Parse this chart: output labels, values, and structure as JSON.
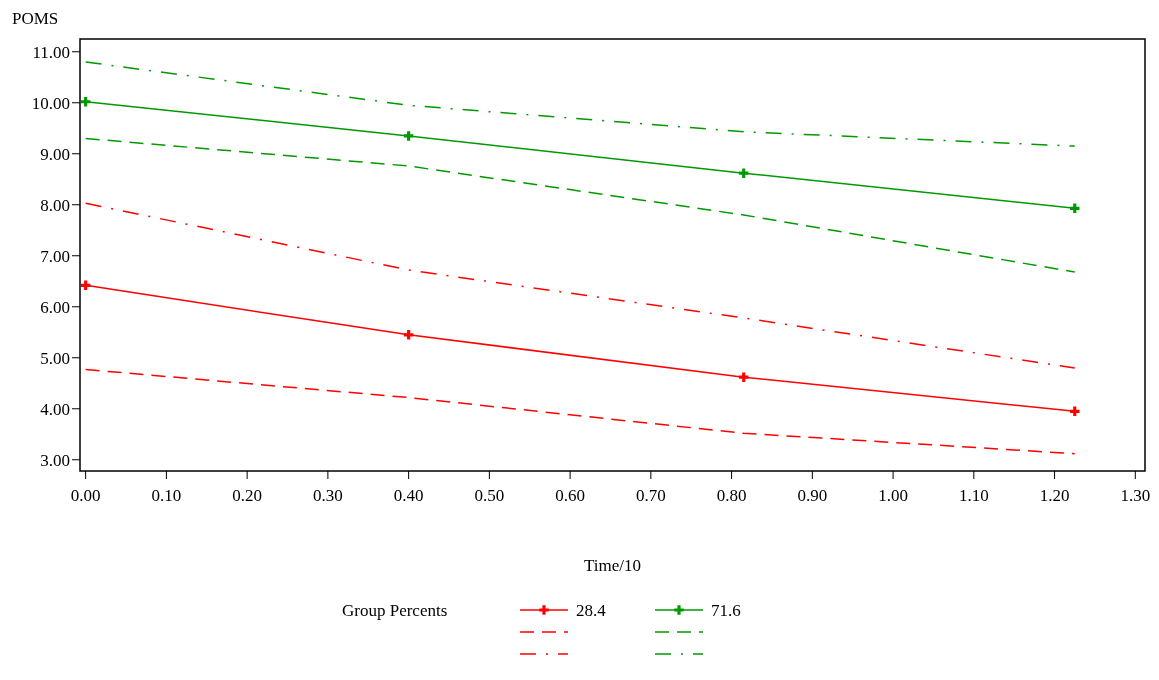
{
  "chart_data": {
    "type": "line",
    "xlabel": "Time/10",
    "ylabel": "POMS",
    "legend_title": "Group Percents",
    "legend": "bottom",
    "grid": false,
    "xlim": [
      -0.007,
      1.312
    ],
    "ylim": [
      2.78,
      11.25
    ],
    "xticks": [
      {
        "value": 0,
        "label": "0.00"
      },
      {
        "value": 0.1,
        "label": "0.10"
      },
      {
        "value": 0.2,
        "label": "0.20"
      },
      {
        "value": 0.3,
        "label": "0.30"
      },
      {
        "value": 0.4,
        "label": "0.40"
      },
      {
        "value": 0.5,
        "label": "0.50"
      },
      {
        "value": 0.6,
        "label": "0.60"
      },
      {
        "value": 0.7,
        "label": "0.70"
      },
      {
        "value": 0.8,
        "label": "0.80"
      },
      {
        "value": 0.9,
        "label": "0.90"
      },
      {
        "value": 1.0,
        "label": "1.00"
      },
      {
        "value": 1.1,
        "label": "1.10"
      },
      {
        "value": 1.2,
        "label": "1.20"
      },
      {
        "value": 1.3,
        "label": "1.30"
      }
    ],
    "yticks": [
      {
        "value": 3,
        "label": "3.00"
      },
      {
        "value": 4,
        "label": "4.00"
      },
      {
        "value": 5,
        "label": "5.00"
      },
      {
        "value": 6,
        "label": "6.00"
      },
      {
        "value": 7,
        "label": "7.00"
      },
      {
        "value": 8,
        "label": "8.00"
      },
      {
        "value": 9,
        "label": "9.00"
      },
      {
        "value": 10,
        "label": "10.00"
      },
      {
        "value": 11,
        "label": "11.00"
      }
    ],
    "x": [
      0,
      0.4,
      0.815,
      1.225
    ],
    "series": [
      {
        "name": "28.4",
        "color": "#ff0000",
        "values": [
          6.42,
          5.45,
          4.62,
          3.95
        ],
        "marker": "cross",
        "line_style": "solid"
      },
      {
        "color": "#ff0000",
        "values": [
          4.77,
          4.22,
          3.52,
          3.12
        ],
        "line_style": "dashed"
      },
      {
        "color": "#ff0000",
        "values": [
          8.03,
          6.72,
          5.78,
          4.8
        ],
        "line_style": "dashdot"
      },
      {
        "name": "71.6",
        "color": "#009900",
        "values": [
          10.02,
          9.35,
          8.62,
          7.93
        ],
        "marker": "cross",
        "line_style": "solid"
      },
      {
        "color": "#009900",
        "values": [
          9.3,
          8.76,
          7.8,
          6.68
        ],
        "line_style": "dashed"
      },
      {
        "color": "#009900",
        "values": [
          10.8,
          9.95,
          9.43,
          9.15
        ],
        "line_style": "dashdot"
      }
    ]
  }
}
